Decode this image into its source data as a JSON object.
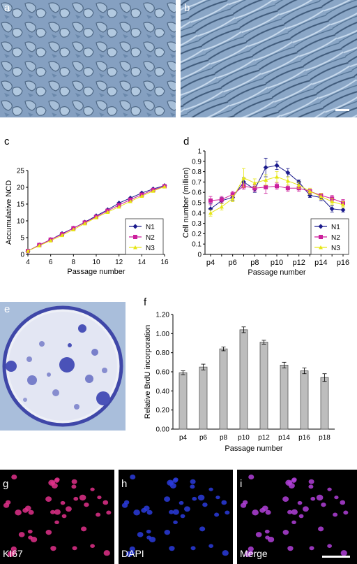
{
  "panel_labels": {
    "a": "a",
    "b": "b",
    "c": "c",
    "d": "d",
    "e": "e",
    "f": "f",
    "g": "g",
    "h": "h",
    "i": "i"
  },
  "fluorescence_labels": {
    "g": "KI67",
    "h": "DAPI",
    "i": "Merge"
  },
  "colors": {
    "N1": "#1a1a8c",
    "N2": "#cc1f9c",
    "N3": "#e6e614",
    "bar_fill": "#bdbdbd",
    "dish_blue": "#4a52b8",
    "phase_bg": "#8aa6c6",
    "ki67": "#e0308a",
    "dapi": "#2a3bdc",
    "merge": "#b040d8"
  },
  "chart_data": [
    {
      "id": "c",
      "type": "line",
      "xlabel": "Passage number",
      "ylabel": "Accumulative NCD",
      "xlim": [
        4,
        16
      ],
      "ylim": [
        0,
        25
      ],
      "xticks": [
        4,
        6,
        8,
        10,
        12,
        14,
        16
      ],
      "yticks": [
        0,
        5,
        10,
        15,
        20,
        25
      ],
      "legend_position": "bottom-right",
      "x": [
        4,
        5,
        6,
        7,
        8,
        9,
        10,
        11,
        12,
        13,
        14,
        15,
        16
      ],
      "series": [
        {
          "name": "N1",
          "values": [
            1.0,
            2.8,
            4.4,
            6.2,
            7.8,
            9.6,
            11.5,
            13.3,
            15.3,
            16.8,
            18.3,
            19.5,
            20.5
          ]
        },
        {
          "name": "N2",
          "values": [
            1.0,
            2.8,
            4.4,
            6.0,
            7.8,
            9.5,
            11.2,
            13.0,
            14.7,
            16.3,
            17.8,
            19.2,
            20.3
          ]
        },
        {
          "name": "N3",
          "values": [
            1.0,
            2.6,
            4.1,
            5.7,
            7.4,
            9.2,
            11.0,
            12.6,
            14.2,
            15.8,
            17.4,
            18.9,
            20.2
          ]
        }
      ]
    },
    {
      "id": "d",
      "type": "line",
      "xlabel": "Passage number",
      "ylabel": "Cell number (million)",
      "ylim": [
        0,
        1
      ],
      "yticks": [
        0,
        0.1,
        0.2,
        0.3,
        0.4,
        0.5,
        0.6,
        0.7,
        0.8,
        0.9,
        1
      ],
      "categories": [
        "p4",
        "p5",
        "p6",
        "p7",
        "p8",
        "p9",
        "p10",
        "p11",
        "p12",
        "p13",
        "p14",
        "p15",
        "p16"
      ],
      "tick_labels": [
        "p4",
        "p6",
        "p8",
        "p10",
        "p12",
        "p14",
        "p16"
      ],
      "legend_position": "bottom-right",
      "series": [
        {
          "name": "N1",
          "values": [
            0.44,
            0.52,
            0.55,
            0.7,
            0.63,
            0.84,
            0.86,
            0.79,
            0.7,
            0.57,
            0.55,
            0.44,
            0.43
          ],
          "errors": [
            0.05,
            0.03,
            0.03,
            0.04,
            0.03,
            0.09,
            0.04,
            0.04,
            0.02,
            0.02,
            0.03,
            0.03,
            0.02
          ]
        },
        {
          "name": "N2",
          "values": [
            0.52,
            0.53,
            0.58,
            0.66,
            0.64,
            0.65,
            0.66,
            0.64,
            0.64,
            0.61,
            0.57,
            0.54,
            0.5
          ],
          "errors": [
            0.04,
            0.03,
            0.03,
            0.03,
            0.03,
            0.06,
            0.03,
            0.03,
            0.03,
            0.02,
            0.02,
            0.03,
            0.03
          ]
        },
        {
          "name": "N3",
          "values": [
            0.4,
            0.46,
            0.54,
            0.74,
            0.69,
            0.72,
            0.75,
            0.71,
            0.67,
            0.61,
            0.56,
            0.51,
            0.48
          ],
          "errors": [
            0.03,
            0.03,
            0.03,
            0.09,
            0.04,
            0.05,
            0.05,
            0.04,
            0.03,
            0.03,
            0.03,
            0.03,
            0.03
          ]
        }
      ]
    },
    {
      "id": "f",
      "type": "bar",
      "xlabel": "Passage number",
      "ylabel": "Relative BrdU incorporation",
      "ylim": [
        0,
        1.2
      ],
      "yticks": [
        "0.00",
        "0.20",
        "0.40",
        "0.60",
        "0.80",
        "1.00",
        "1.20"
      ],
      "categories": [
        "p4",
        "p6",
        "p8",
        "p10",
        "p12",
        "p14",
        "p16",
        "p18"
      ],
      "values": [
        0.59,
        0.65,
        0.84,
        1.04,
        0.91,
        0.67,
        0.61,
        0.54
      ],
      "errors": [
        0.02,
        0.03,
        0.02,
        0.03,
        0.02,
        0.03,
        0.03,
        0.04
      ]
    }
  ]
}
